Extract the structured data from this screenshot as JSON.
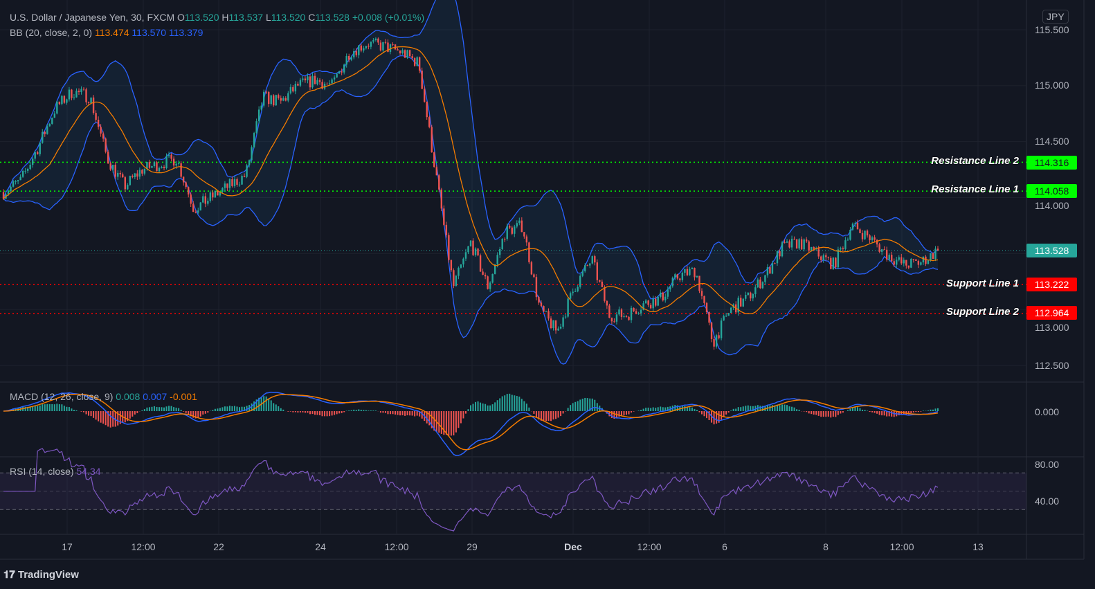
{
  "header": {
    "symbol": "U.S. Dollar / Japanese Yen, 30, FXCM",
    "o_label": "O",
    "o": "113.520",
    "h_label": "H",
    "h": "113.537",
    "l_label": "L",
    "l": "113.520",
    "c_label": "C",
    "c": "113.528",
    "change": "+0.008 (+0.01%)"
  },
  "bb": {
    "label": "BB (20, close, 2, 0)",
    "basis": "113.474",
    "upper": "113.570",
    "lower": "113.379"
  },
  "macd": {
    "label": "MACD (12, 26, close, 9)",
    "hist": "0.008",
    "macd": "0.007",
    "signal": "-0.001",
    "axis": "0.000"
  },
  "rsi": {
    "label": "RSI (14, close)",
    "value": "54.34",
    "axis": [
      "80.00",
      "40.00"
    ]
  },
  "currency": "JPY",
  "price_axis": [
    "115.500",
    "115.000",
    "114.500",
    "114.000",
    "113.000",
    "112.500"
  ],
  "lines": [
    {
      "name": "Resistance Line 2",
      "price": "114.316",
      "color": "#00ff00"
    },
    {
      "name": "Resistance Line 1",
      "price": "114.058",
      "color": "#00ff00"
    },
    {
      "name": "Support Line 1",
      "price": "113.222",
      "color": "#ff0000"
    },
    {
      "name": "Support Line 2",
      "price": "112.964",
      "color": "#ff0000"
    }
  ],
  "last_price": {
    "value": "113.528",
    "color": "#26a69a"
  },
  "time_axis": [
    "17",
    "12:00",
    "22",
    "24",
    "12:00",
    "29",
    "Dec",
    "12:00",
    "6",
    "8",
    "12:00",
    "13"
  ],
  "footer": "TradingView",
  "chart_data": {
    "type": "candlestick",
    "ylim": [
      112.4,
      115.6
    ],
    "colors": {
      "up": "#26a69a",
      "down": "#ef5350",
      "bb_basis": "#f57c00",
      "bb_band": "#2962ff",
      "rsi": "#7e57c2"
    },
    "close_path_approx": [
      114.05,
      114.15,
      114.45,
      114.8,
      114.95,
      114.9,
      114.35,
      114.1,
      114.25,
      114.3,
      114.35,
      113.9,
      114.0,
      114.1,
      114.2,
      114.9,
      114.85,
      115.0,
      115.05,
      115.0,
      115.3,
      115.38,
      115.35,
      115.3,
      115.2,
      114.2,
      113.2,
      113.6,
      113.2,
      113.7,
      113.75,
      113.0,
      112.8,
      113.2,
      113.45,
      112.95,
      112.95,
      113.05,
      113.1,
      113.3,
      113.35,
      112.7,
      113.0,
      113.1,
      113.3,
      113.55,
      113.6,
      113.5,
      113.4,
      113.75,
      113.65,
      113.5,
      113.4,
      113.42,
      113.528
    ]
  }
}
